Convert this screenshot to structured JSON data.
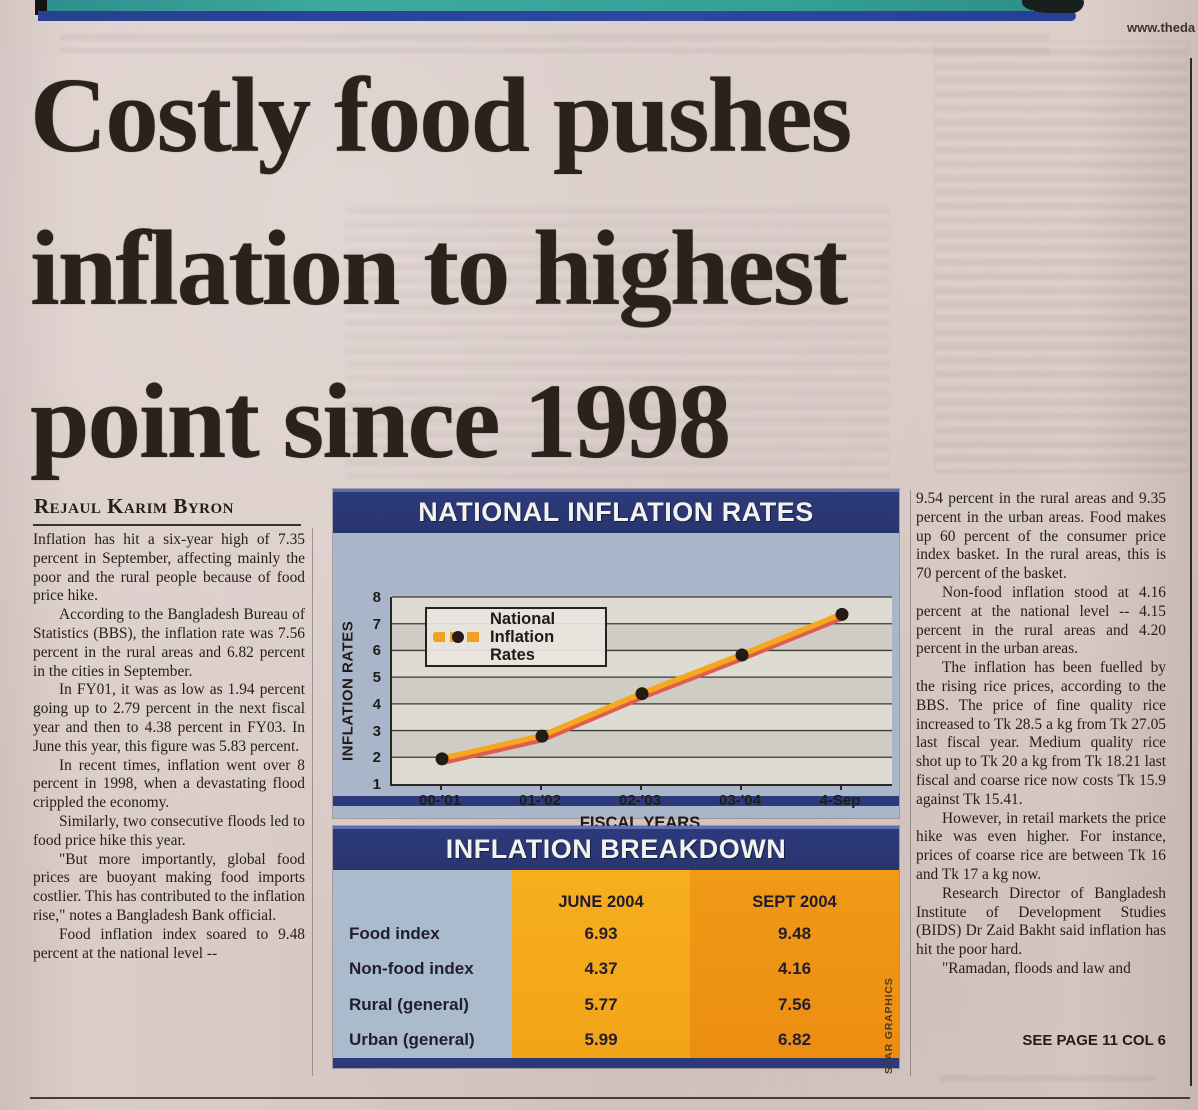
{
  "page": {
    "url_text": "www.theda",
    "see_page": "SEE PAGE 11 COL 6",
    "credit_vertical": "STAR GRAPHICS"
  },
  "headline": {
    "line1": "Costly food pushes",
    "line2": "inflation to highest",
    "line3": "point since 1998"
  },
  "byline": "Rejaul Karim Byron",
  "article": {
    "left_column": [
      "Inflation has hit a six-year high of 7.35 percent in September, affecting mainly the poor and the rural people because of food price hike.",
      "According to the Bangladesh Bureau of Statistics (BBS), the inflation rate was 7.56 percent in the rural areas and 6.82 percent in the cities in September.",
      "In FY01, it was as low as 1.94 percent going up to 2.79 percent in the next fiscal year and then to 4.38 percent in FY03. In June this year, this figure was 5.83 percent.",
      "In recent times, inflation went over 8 percent in 1998, when a devastating flood crippled the economy.",
      "Similarly, two consecutive floods led to food price hike this year.",
      "\"But more importantly, global food prices are buoyant making food imports costlier. This has contributed to the inflation rise,\" notes a Bangladesh Bank official.",
      "Food inflation index soared to 9.48 percent at the national level --"
    ],
    "right_column": [
      "9.54 percent in the rural areas and 9.35 percent in the urban areas. Food makes up 60 percent of the consumer price index basket. In the rural areas, this is 70 percent of the basket.",
      "Non-food inflation stood at 4.16 percent at the national level -- 4.15 percent in the rural areas and 4.20 percent in the urban areas.",
      "The inflation has been fuelled by the rising rice prices, according to the BBS. The price of fine quality rice increased to Tk 28.5 a kg from Tk 27.05 last fiscal year. Medium quality rice shot up to Tk 20 a kg from Tk 18.21 last fiscal and coarse rice now costs Tk 15.9 against Tk 15.41.",
      "However, in retail markets the price hike was even higher. For instance, prices of coarse rice are between Tk 16 and Tk 17 a kg now.",
      "Research Director of Bangladesh Institute of Development Studies (BIDS) Dr Zaid Bakht said inflation has hit the poor hard.",
      "\"Ramadan, floods and law and"
    ]
  },
  "chart_data": {
    "type": "line",
    "title": "NATIONAL INFLATION RATES",
    "xlabel": "FISCAL YEARS",
    "ylabel": "INFLATION RATES",
    "categories": [
      "00-'01",
      "01-'02",
      "02-'03",
      "03-'04",
      "4-Sep"
    ],
    "series": [
      {
        "name": "National Inflation Rates",
        "values": [
          1.94,
          2.79,
          4.38,
          5.83,
          7.35
        ]
      }
    ],
    "ylim": [
      1,
      8
    ],
    "yticks": [
      1,
      2,
      3,
      4,
      5,
      6,
      7,
      8
    ],
    "grid": true,
    "legend_position": "top-left",
    "colors": {
      "main_line": "#f5a81d",
      "shadow_line": "#df5d50",
      "marker": "#241b15",
      "grid": "#3c3a35"
    }
  },
  "table": {
    "title": "INFLATION BREAKDOWN",
    "columns": [
      "JUNE 2004",
      "SEPT 2004"
    ],
    "rows": [
      {
        "label": "Food index",
        "june": "6.93",
        "sept": "9.48"
      },
      {
        "label": "Non-food index",
        "june": "4.37",
        "sept": "4.16"
      },
      {
        "label": "Rural (general)",
        "june": "5.77",
        "sept": "7.56"
      },
      {
        "label": "Urban (general)",
        "june": "5.99",
        "sept": "6.82"
      }
    ]
  },
  "colors": {
    "paper": "#d8c9c5",
    "ink": "#26201a",
    "navy": "#2c3a7c",
    "teal_bar": "#3fa9a0",
    "blue_stripe": "#2b49a3",
    "june_column": "#f4a91c",
    "sept_column": "#ee9014",
    "panel_blue": "#a9b6c9"
  }
}
